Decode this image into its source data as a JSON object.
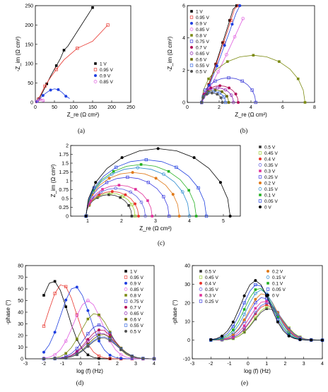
{
  "captions": {
    "a": "(a)",
    "b": "(b)",
    "c": "(c)",
    "d": "(d)",
    "e": "(e)"
  },
  "chart_data": [
    {
      "id": "a",
      "type": "scatter",
      "title": "",
      "xlabel": "Z_re (Ω cm²)",
      "ylabel": "-Z_im (Ω cm²)",
      "xlim": [
        0,
        250
      ],
      "ylim": [
        0,
        250
      ],
      "xticks": [
        0,
        50,
        100,
        150,
        200,
        250
      ],
      "yticks": [
        0,
        50,
        100,
        150,
        200,
        250
      ],
      "legend_position": "right",
      "series": [
        {
          "name": "1 V",
          "color": "#000000",
          "marker": "square-filled",
          "points": [
            [
              10,
              10
            ],
            [
              20,
              28
            ],
            [
              30,
              48
            ],
            [
              40,
              68
            ],
            [
              55,
              95
            ],
            [
              65,
              112
            ],
            [
              75,
              135
            ],
            [
              85,
              145
            ],
            [
              150,
              245
            ]
          ]
        },
        {
          "name": "0.95 V",
          "color": "#e8362f",
          "marker": "square-open",
          "points": [
            [
              8,
              8
            ],
            [
              15,
              22
            ],
            [
              25,
              42
            ],
            [
              40,
              65
            ],
            [
              55,
              85
            ],
            [
              75,
              110
            ],
            [
              110,
              140
            ],
            [
              150,
              158
            ],
            [
              190,
              200
            ]
          ]
        },
        {
          "name": "0.9 V",
          "color": "#1f3fe0",
          "marker": "circle-filled",
          "points": [
            [
              5,
              3
            ],
            [
              10,
              8
            ],
            [
              20,
              18
            ],
            [
              30,
              26
            ],
            [
              40,
              32
            ],
            [
              50,
              35
            ],
            [
              60,
              33
            ],
            [
              70,
              26
            ],
            [
              80,
              16
            ],
            [
              90,
              10
            ]
          ]
        },
        {
          "name": "0.85 V",
          "color": "#e060e0",
          "marker": "circle-open",
          "points": [
            [
              3,
              2
            ],
            [
              8,
              6
            ],
            [
              12,
              8
            ],
            [
              16,
              8
            ],
            [
              20,
              5
            ],
            [
              24,
              2
            ]
          ]
        }
      ]
    },
    {
      "id": "b",
      "type": "scatter",
      "title": "",
      "xlabel": "Z_re (Ω cm²)",
      "ylabel": "-Z_im (Ω cm²)",
      "xlim": [
        0,
        8
      ],
      "ylim": [
        0,
        6
      ],
      "xticks": [
        0,
        2,
        4,
        6,
        8
      ],
      "yticks": [
        0,
        2,
        4,
        6
      ],
      "legend_position": "top-left",
      "series": [
        {
          "name": "1 V",
          "color": "#000000",
          "peak": [
            1.4,
            6.5
          ]
        },
        {
          "name": "0.95 V",
          "color": "#e8362f",
          "peak": [
            1.5,
            6.5
          ]
        },
        {
          "name": "0.9 V",
          "color": "#1f3fe0",
          "peak": [
            1.6,
            6.2
          ]
        },
        {
          "name": "0.85 V",
          "color": "#e060e0",
          "peak": [
            1.8,
            5.2
          ]
        },
        {
          "name": "0.8 V",
          "color": "#7b8a10",
          "arc": [
            0.9,
            7.4
          ]
        },
        {
          "name": "0.75 V",
          "color": "#3b3bd8",
          "arc": [
            0.9,
            4.3
          ]
        },
        {
          "name": "0.7 V",
          "color": "#b3105a",
          "arc": [
            0.9,
            3.2
          ]
        },
        {
          "name": "0.65 V",
          "color": "#8a20b0",
          "arc": [
            0.9,
            2.9
          ]
        },
        {
          "name": "0.6 V",
          "color": "#6a6a00",
          "arc": [
            0.9,
            2.6
          ]
        },
        {
          "name": "0.55 V",
          "color": "#3a6ae0",
          "arc": [
            0.9,
            2.4
          ]
        },
        {
          "name": "0.5 V",
          "color": "#555555",
          "arc": [
            0.9,
            2.2
          ]
        }
      ]
    },
    {
      "id": "c",
      "type": "scatter",
      "title": "",
      "xlabel": "Z_re (Ω cm²)",
      "ylabel": "Z_im (Ω cm²)",
      "xlim": [
        0.5,
        5.5
      ],
      "ylim": [
        0,
        2.0
      ],
      "xticks": [
        1,
        2,
        3,
        4,
        5
      ],
      "yticks": [
        0,
        0.25,
        0.5,
        0.75,
        1.0,
        1.25,
        1.5,
        1.75,
        2.0
      ],
      "legend_position": "right",
      "series": [
        {
          "name": "0.5 V",
          "color": "#333333",
          "arc": [
            0.95,
            2.3
          ]
        },
        {
          "name": "0.45 V",
          "color": "#9acd32",
          "arc": [
            0.95,
            2.4
          ]
        },
        {
          "name": "0.4 V",
          "color": "#e8362f",
          "arc": [
            0.95,
            2.5
          ]
        },
        {
          "name": "0.35 V",
          "color": "#5a5ae0",
          "arc": [
            0.95,
            2.7
          ]
        },
        {
          "name": "0.3 V",
          "color": "#e0309a",
          "arc": [
            0.95,
            2.9
          ]
        },
        {
          "name": "0.25 V",
          "color": "#3a3ae0",
          "arc": [
            0.95,
            3.4
          ]
        },
        {
          "name": "0.2 V",
          "color": "#e07a1a",
          "arc": [
            0.95,
            3.7
          ]
        },
        {
          "name": "0.15 V",
          "color": "#2a8ad0",
          "arc": [
            0.95,
            4.0
          ]
        },
        {
          "name": "0.1 V",
          "color": "#22b020",
          "arc": [
            0.95,
            4.2
          ]
        },
        {
          "name": "0.05 V",
          "color": "#1f3fe0",
          "arc": [
            0.95,
            4.5
          ]
        },
        {
          "name": "0 V",
          "color": "#000000",
          "arc": [
            0.95,
            5.2
          ]
        }
      ]
    },
    {
      "id": "d",
      "type": "line",
      "title": "",
      "xlabel": "log (f) (Hz)",
      "ylabel": "-phase (°)",
      "xlim": [
        -3,
        4
      ],
      "ylim": [
        0,
        80
      ],
      "xticks": [
        -3,
        -2,
        -1,
        0,
        1,
        2,
        3,
        4
      ],
      "yticks": [
        0,
        10,
        20,
        30,
        40,
        50,
        60,
        70,
        80
      ],
      "legend_position": "top-right",
      "series": [
        {
          "name": "1 V",
          "color": "#000000",
          "peak": [
            -1.5,
            67
          ]
        },
        {
          "name": "0.95 V",
          "color": "#e8362f",
          "peak": [
            -1.0,
            64
          ]
        },
        {
          "name": "0.9 V",
          "color": "#1f3fe0",
          "peak": [
            -0.3,
            62
          ]
        },
        {
          "name": "0.85 V",
          "color": "#e060e0",
          "peak": [
            0.4,
            50
          ]
        },
        {
          "name": "0.8 V",
          "color": "#7b8a10",
          "peak": [
            0.8,
            39
          ]
        },
        {
          "name": "0.75 V",
          "color": "#3b3bd8",
          "peak": [
            1.0,
            29
          ]
        },
        {
          "name": "0.7 V",
          "color": "#b3105a",
          "peak": [
            1.1,
            25
          ]
        },
        {
          "name": "0.65 V",
          "color": "#8a20b0",
          "peak": [
            1.1,
            22
          ]
        },
        {
          "name": "0.6 V",
          "color": "#6a6a00",
          "peak": [
            1.2,
            21
          ]
        },
        {
          "name": "0.55 V",
          "color": "#3a6ae0",
          "peak": [
            1.2,
            19
          ]
        },
        {
          "name": "0.5 V",
          "color": "#555555",
          "peak": [
            1.2,
            18
          ]
        }
      ]
    },
    {
      "id": "e",
      "type": "line",
      "title": "",
      "xlabel": "log (f) (Hz)",
      "ylabel": "-phase (°)",
      "xlim": [
        -3,
        4
      ],
      "ylim": [
        -10,
        40
      ],
      "xticks": [
        -3,
        -2,
        -1,
        0,
        1,
        2,
        3,
        4
      ],
      "yticks": [
        -10,
        0,
        10,
        20,
        30,
        40
      ],
      "legend_position": "top",
      "series": [
        {
          "name": "0.5 V",
          "color": "#333333",
          "peak": [
            1.1,
            17
          ]
        },
        {
          "name": "0.45 V",
          "color": "#9acd32",
          "peak": [
            1.1,
            18
          ]
        },
        {
          "name": "0.4 V",
          "color": "#e8362f",
          "peak": [
            1.0,
            19
          ]
        },
        {
          "name": "0.35 V",
          "color": "#5a5ae0",
          "peak": [
            1.0,
            20
          ]
        },
        {
          "name": "0.3 V",
          "color": "#e0309a",
          "peak": [
            0.9,
            21
          ]
        },
        {
          "name": "0.25 V",
          "color": "#3a3ae0",
          "peak": [
            0.8,
            23
          ]
        },
        {
          "name": "0.2 V",
          "color": "#e07a1a",
          "peak": [
            0.8,
            25
          ]
        },
        {
          "name": "0.15 V",
          "color": "#2a8ad0",
          "peak": [
            0.7,
            27
          ]
        },
        {
          "name": "0.1 V",
          "color": "#22b020",
          "peak": [
            0.6,
            28
          ]
        },
        {
          "name": "0.05 V",
          "color": "#1f3fe0",
          "peak": [
            0.5,
            30
          ]
        },
        {
          "name": "0 V",
          "color": "#000000",
          "peak": [
            0.4,
            32
          ]
        }
      ]
    }
  ]
}
